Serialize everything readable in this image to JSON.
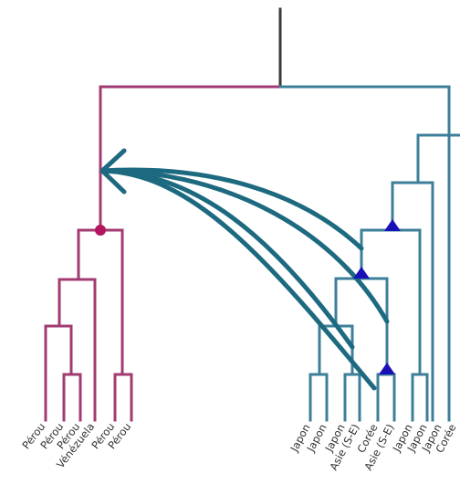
{
  "colors": {
    "root_line": "#3a3a3a",
    "left_clade": "#a23b72",
    "right_clade": "#3d7f99",
    "transfer_arrow": "#1d6a80",
    "node_dot": "#b3165e",
    "node_triangle": "#1a10b8",
    "label_text": "#333333"
  },
  "left_leaves": [
    {
      "label": "Pérou"
    },
    {
      "label": "Pérou"
    },
    {
      "label": "Pérou"
    },
    {
      "label": "Vénézuela"
    },
    {
      "label": "Pérou"
    },
    {
      "label": "Pérou"
    }
  ],
  "right_leaves": [
    {
      "label": "Japon"
    },
    {
      "label": "Japon"
    },
    {
      "label": "Japon"
    },
    {
      "label": "Asie (S-E)"
    },
    {
      "label": "Corée"
    },
    {
      "label": "Asie (S-E)"
    },
    {
      "label": "Japon"
    },
    {
      "label": "Japon"
    },
    {
      "label": "Japon"
    },
    {
      "label": "Corée"
    }
  ],
  "transfer_arrow_count": 4
}
